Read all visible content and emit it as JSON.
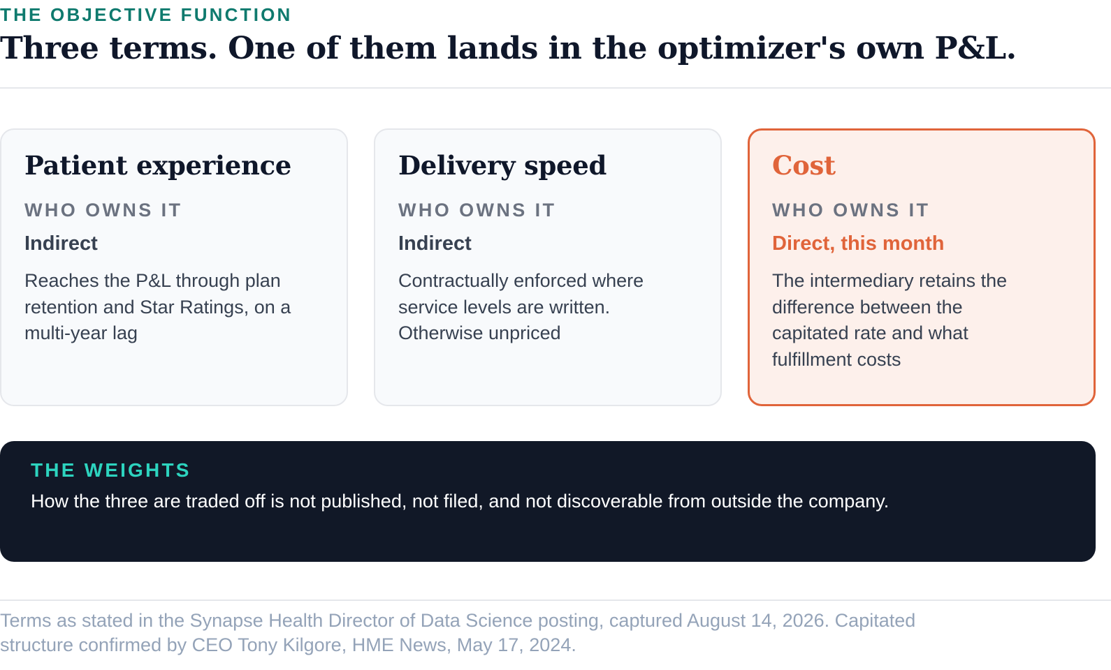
{
  "header": {
    "eyebrow": "THE OBJECTIVE FUNCTION",
    "title": "Three terms. One of them lands in the optimizer's own P&L."
  },
  "cards": [
    {
      "title": "Patient experience",
      "owner_label": "WHO OWNS IT",
      "owner_value": "Indirect",
      "body": "Reaches the P&L through plan retention and Star Ratings, on a multi-year lag",
      "highlighted": false
    },
    {
      "title": "Delivery speed",
      "owner_label": "WHO OWNS IT",
      "owner_value": "Indirect",
      "body": "Contractually enforced where service levels are written. Otherwise unpriced",
      "highlighted": false
    },
    {
      "title": "Cost",
      "owner_label": "WHO OWNS IT",
      "owner_value": "Direct, this month",
      "body": "The intermediary retains the difference between the capitated rate and what fulfillment costs",
      "highlighted": true
    }
  ],
  "weights": {
    "label": "THE WEIGHTS",
    "text": "How the three are traded off is not published, not filed, and not discoverable from outside the company."
  },
  "footnote": "Terms as stated in the Synapse Health Director of Data Science posting, captured August 14, 2026. Capitated structure confirmed by CEO Tony Kilgore, HME News, May 17, 2024.",
  "colors": {
    "accent_teal": "#0f7a6e",
    "highlight_orange": "#e0643a",
    "highlight_bg": "#fdf0eb",
    "dark_panel": "#111827",
    "panel_label": "#2dd4bf"
  }
}
